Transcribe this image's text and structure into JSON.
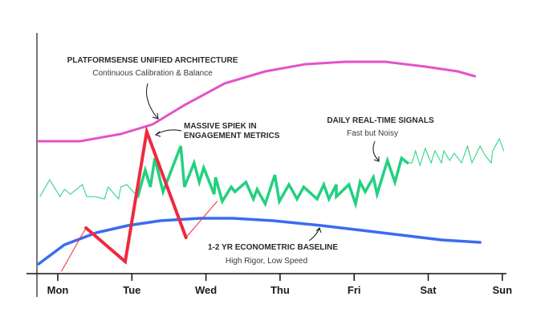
{
  "chart_data": {
    "type": "line",
    "title": "",
    "xlabel": "",
    "ylabel": "",
    "categories": [
      "Mon",
      "Tue",
      "Wed",
      "Thu",
      "Fri",
      "Sat",
      "Sun"
    ],
    "xlim": [
      -0.3,
      6.1
    ],
    "ylim": [
      0,
      100
    ],
    "grid": false,
    "series": [
      {
        "key": "unified",
        "color": "#e552c9",
        "width": 3,
        "points": [
          [
            -0.26,
            55
          ],
          [
            0.3,
            55
          ],
          [
            0.85,
            58
          ],
          [
            1.28,
            62
          ],
          [
            1.71,
            70
          ],
          [
            2.25,
            79
          ],
          [
            2.8,
            84
          ],
          [
            3.34,
            87
          ],
          [
            3.88,
            88
          ],
          [
            4.42,
            88
          ],
          [
            4.96,
            86
          ],
          [
            5.4,
            84
          ],
          [
            5.63,
            82
          ]
        ]
      },
      {
        "key": "baseline",
        "color": "#3a6cf0",
        "width": 3.5,
        "points": [
          [
            -0.26,
            4
          ],
          [
            0.09,
            12
          ],
          [
            0.52,
            17
          ],
          [
            0.95,
            20
          ],
          [
            1.39,
            22
          ],
          [
            1.93,
            23
          ],
          [
            2.36,
            23
          ],
          [
            2.9,
            22
          ],
          [
            3.55,
            20
          ],
          [
            4.1,
            18
          ],
          [
            4.64,
            16
          ],
          [
            5.18,
            14
          ],
          [
            5.7,
            13
          ]
        ]
      },
      {
        "key": "daily-thin-left",
        "color": "#22d17f",
        "width": 1,
        "points": [
          [
            -0.24,
            32
          ],
          [
            -0.11,
            39
          ],
          [
            0.03,
            32
          ],
          [
            0.09,
            35
          ],
          [
            0.17,
            33
          ],
          [
            0.33,
            37
          ],
          [
            0.39,
            32
          ],
          [
            0.5,
            32
          ],
          [
            0.63,
            31
          ],
          [
            0.68,
            36
          ],
          [
            0.82,
            31
          ],
          [
            0.85,
            36
          ],
          [
            0.93,
            37
          ],
          [
            1.08,
            32
          ]
        ]
      },
      {
        "key": "daily-thick",
        "color": "#22d17f",
        "width": 3.5,
        "points": [
          [
            1.08,
            32
          ],
          [
            1.18,
            43
          ],
          [
            1.25,
            36
          ],
          [
            1.31,
            48
          ],
          [
            1.42,
            34
          ],
          [
            1.66,
            53
          ],
          [
            1.71,
            36
          ],
          [
            1.84,
            46
          ],
          [
            1.91,
            38
          ],
          [
            1.97,
            44
          ],
          [
            2.11,
            33
          ],
          [
            2.13,
            40
          ],
          [
            2.22,
            30
          ],
          [
            2.34,
            36
          ],
          [
            2.39,
            34
          ],
          [
            2.54,
            38
          ],
          [
            2.64,
            31
          ],
          [
            2.69,
            35
          ],
          [
            2.8,
            29
          ],
          [
            2.93,
            41
          ],
          [
            2.99,
            30
          ],
          [
            3.12,
            37
          ],
          [
            3.23,
            31
          ],
          [
            3.32,
            36
          ],
          [
            3.5,
            31
          ],
          [
            3.59,
            37
          ],
          [
            3.66,
            31
          ],
          [
            3.76,
            37
          ],
          [
            3.76,
            32
          ],
          [
            3.93,
            37
          ],
          [
            4.02,
            29
          ],
          [
            4.08,
            38
          ],
          [
            4.15,
            34
          ],
          [
            4.26,
            40
          ],
          [
            4.31,
            33
          ],
          [
            4.45,
            47
          ],
          [
            4.55,
            38
          ],
          [
            4.64,
            48
          ],
          [
            4.72,
            46
          ]
        ]
      },
      {
        "key": "daily-thin-right",
        "color": "#22d17f",
        "width": 1,
        "points": [
          [
            4.72,
            46
          ],
          [
            4.78,
            46
          ],
          [
            4.83,
            51
          ],
          [
            4.89,
            45
          ],
          [
            4.96,
            52
          ],
          [
            5.04,
            46
          ],
          [
            5.09,
            51
          ],
          [
            5.18,
            46
          ],
          [
            5.21,
            51
          ],
          [
            5.29,
            47
          ],
          [
            5.35,
            50
          ],
          [
            5.45,
            46
          ],
          [
            5.53,
            53
          ],
          [
            5.59,
            46
          ],
          [
            5.7,
            53
          ],
          [
            5.77,
            49
          ],
          [
            5.85,
            46
          ],
          [
            5.87,
            51
          ],
          [
            5.96,
            56
          ],
          [
            6.02,
            51
          ]
        ]
      },
      {
        "key": "spike-thin-in",
        "color": "#ee2a3f",
        "width": 1,
        "points": [
          [
            0.05,
            1
          ],
          [
            0.38,
            19
          ]
        ]
      },
      {
        "key": "spike",
        "color": "#ee2a3f",
        "width": 4,
        "points": [
          [
            0.38,
            19
          ],
          [
            0.91,
            5
          ],
          [
            1.2,
            59
          ],
          [
            1.73,
            15
          ]
        ]
      },
      {
        "key": "spike-thin-out",
        "color": "#ee2a3f",
        "width": 1,
        "points": [
          [
            1.73,
            15
          ],
          [
            2.15,
            30
          ]
        ]
      }
    ],
    "annotations": {
      "unified": {
        "title": "PLATFORMSENSE  UNIFIED ARCHITECTURE",
        "subtitle": "Continuous Calibration & Balance"
      },
      "spike": {
        "line1": "MASSIVE SPIEK IN",
        "line2": "ENGAGEMENT METRICS"
      },
      "daily": {
        "title": "DAILY REAL-TIME SIGNALS",
        "subtitle": "Fast but Noisy"
      },
      "baseline": {
        "title": "1-2 YR ECONOMETRIC BASELINE",
        "subtitle": "High Rigor, Low Speed"
      }
    }
  }
}
